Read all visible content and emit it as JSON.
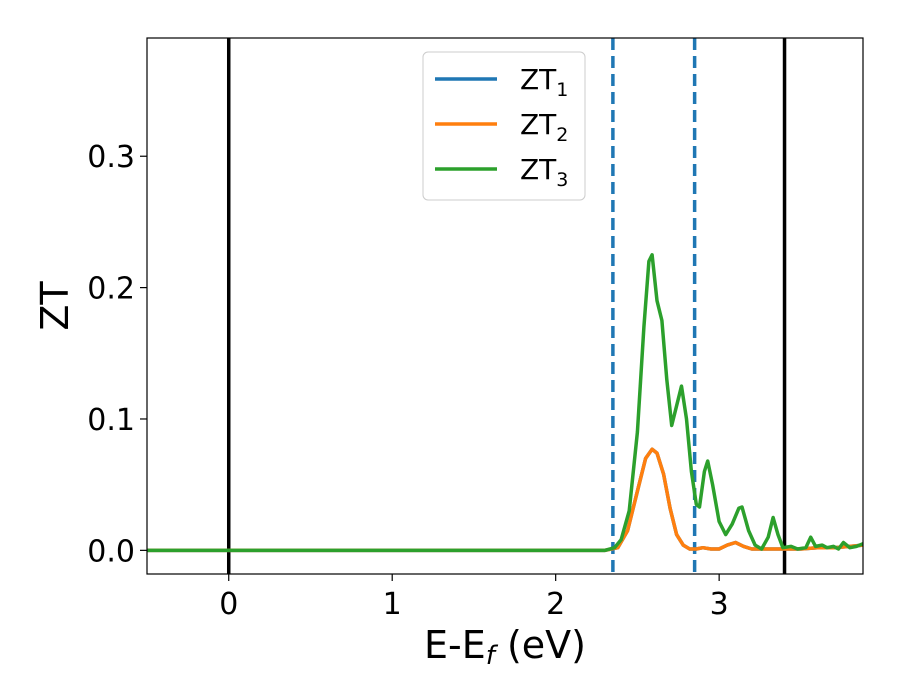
{
  "chart_data": {
    "type": "line",
    "title": "",
    "xlabel": {
      "main": "E-E",
      "sub": "f",
      "unit": " (eV)"
    },
    "ylabel": "ZT",
    "xlim": [
      -0.5,
      3.88
    ],
    "ylim": [
      -0.018,
      0.39
    ],
    "xticks": [
      0,
      1,
      2,
      3
    ],
    "xtick_labels": [
      "0",
      "1",
      "2",
      "3"
    ],
    "yticks": [
      0.0,
      0.1,
      0.2,
      0.3
    ],
    "ytick_labels": [
      "0.0",
      "0.1",
      "0.2",
      "0.3"
    ],
    "grid": false,
    "legend_position": "top-center",
    "vlines_solid": [
      0.0,
      3.4
    ],
    "vlines_dashed": [
      2.35,
      2.85
    ],
    "series": [
      {
        "name": "ZT",
        "sub": "1",
        "color": "#1f77b4",
        "points": [
          [
            -0.5,
            0
          ],
          [
            2.3,
            0
          ],
          [
            2.38,
            0.002
          ],
          [
            2.44,
            0.015
          ],
          [
            2.5,
            0.045
          ],
          [
            2.55,
            0.07
          ],
          [
            2.59,
            0.077
          ],
          [
            2.62,
            0.074
          ],
          [
            2.66,
            0.058
          ],
          [
            2.7,
            0.032
          ],
          [
            2.74,
            0.012
          ],
          [
            2.78,
            0.004
          ],
          [
            2.82,
            0.001
          ],
          [
            2.86,
            0.001
          ],
          [
            2.9,
            0.002
          ],
          [
            2.95,
            0.001
          ],
          [
            3.0,
            0.001
          ],
          [
            3.05,
            0.004
          ],
          [
            3.1,
            0.006
          ],
          [
            3.15,
            0.003
          ],
          [
            3.2,
            0.001
          ],
          [
            3.3,
            0.001
          ],
          [
            3.4,
            0.001
          ],
          [
            3.5,
            0.001
          ],
          [
            3.6,
            0.002
          ],
          [
            3.7,
            0.002
          ],
          [
            3.8,
            0.003
          ],
          [
            3.88,
            0.004
          ]
        ]
      },
      {
        "name": "ZT",
        "sub": "2",
        "color": "#ff7f0e",
        "points": [
          [
            -0.5,
            0
          ],
          [
            2.3,
            0
          ],
          [
            2.38,
            0.002
          ],
          [
            2.44,
            0.015
          ],
          [
            2.5,
            0.045
          ],
          [
            2.55,
            0.07
          ],
          [
            2.59,
            0.077
          ],
          [
            2.62,
            0.074
          ],
          [
            2.66,
            0.058
          ],
          [
            2.7,
            0.032
          ],
          [
            2.74,
            0.012
          ],
          [
            2.78,
            0.004
          ],
          [
            2.82,
            0.001
          ],
          [
            2.86,
            0.001
          ],
          [
            2.9,
            0.002
          ],
          [
            2.95,
            0.001
          ],
          [
            3.0,
            0.001
          ],
          [
            3.05,
            0.004
          ],
          [
            3.1,
            0.006
          ],
          [
            3.15,
            0.003
          ],
          [
            3.2,
            0.001
          ],
          [
            3.3,
            0.001
          ],
          [
            3.4,
            0.001
          ],
          [
            3.5,
            0.001
          ],
          [
            3.6,
            0.002
          ],
          [
            3.7,
            0.002
          ],
          [
            3.8,
            0.003
          ],
          [
            3.88,
            0.004
          ]
        ]
      },
      {
        "name": "ZT",
        "sub": "3",
        "color": "#2ca02c",
        "points": [
          [
            -0.5,
            0
          ],
          [
            2.3,
            0
          ],
          [
            2.36,
            0.002
          ],
          [
            2.4,
            0.008
          ],
          [
            2.45,
            0.03
          ],
          [
            2.5,
            0.09
          ],
          [
            2.54,
            0.17
          ],
          [
            2.57,
            0.22
          ],
          [
            2.59,
            0.225
          ],
          [
            2.62,
            0.19
          ],
          [
            2.65,
            0.175
          ],
          [
            2.68,
            0.13
          ],
          [
            2.71,
            0.095
          ],
          [
            2.74,
            0.11
          ],
          [
            2.77,
            0.125
          ],
          [
            2.8,
            0.1
          ],
          [
            2.83,
            0.06
          ],
          [
            2.86,
            0.035
          ],
          [
            2.88,
            0.033
          ],
          [
            2.91,
            0.06
          ],
          [
            2.93,
            0.068
          ],
          [
            2.96,
            0.05
          ],
          [
            3.0,
            0.022
          ],
          [
            3.04,
            0.012
          ],
          [
            3.08,
            0.02
          ],
          [
            3.12,
            0.032
          ],
          [
            3.14,
            0.033
          ],
          [
            3.18,
            0.015
          ],
          [
            3.22,
            0.004
          ],
          [
            3.26,
            0.001
          ],
          [
            3.3,
            0.01
          ],
          [
            3.33,
            0.025
          ],
          [
            3.36,
            0.012
          ],
          [
            3.39,
            0.002
          ],
          [
            3.44,
            0.003
          ],
          [
            3.48,
            0.001
          ],
          [
            3.53,
            0.002
          ],
          [
            3.56,
            0.01
          ],
          [
            3.59,
            0.003
          ],
          [
            3.63,
            0.004
          ],
          [
            3.66,
            0.002
          ],
          [
            3.7,
            0.003
          ],
          [
            3.73,
            0.001
          ],
          [
            3.76,
            0.006
          ],
          [
            3.8,
            0.002
          ],
          [
            3.84,
            0.003
          ],
          [
            3.88,
            0.005
          ]
        ]
      }
    ]
  }
}
